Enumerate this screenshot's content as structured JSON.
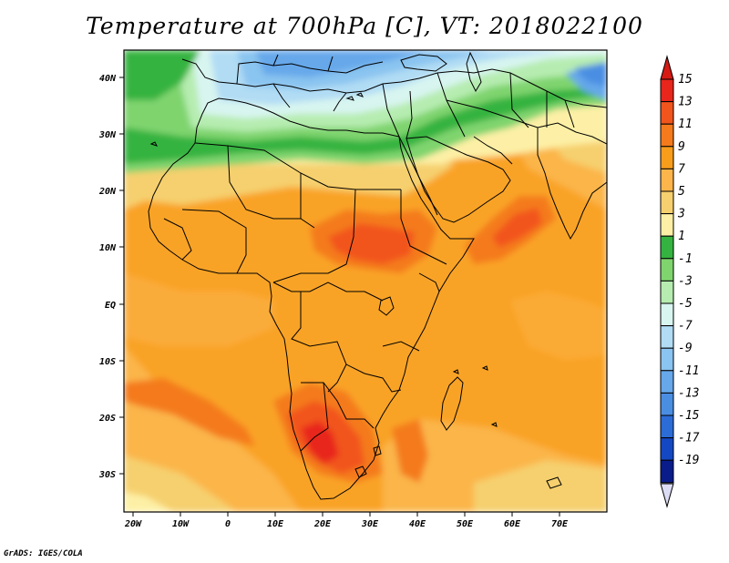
{
  "title": "Temperature at 700hPa [C], VT: 2018022100",
  "credit": "GrADS: IGES/COLA",
  "map": {
    "lon_labels": [
      "20W",
      "10W",
      "0",
      "10E",
      "20E",
      "30E",
      "40E",
      "50E",
      "60E",
      "70E"
    ],
    "lat_labels": [
      "40N",
      "30N",
      "20N",
      "10N",
      "EQ",
      "10S",
      "20S",
      "30S"
    ]
  },
  "colorbar": {
    "labels": [
      "15",
      "13",
      "11",
      "9",
      "7",
      "5",
      "3",
      "1",
      "-1",
      "-3",
      "-5",
      "-7",
      "-9",
      "-11",
      "-13",
      "-15",
      "-17",
      "-19"
    ],
    "colors": [
      "#e8261c",
      "#f2551c",
      "#f47a1c",
      "#f89c1c",
      "#fbb54a",
      "#f6d06e",
      "#fdf0a6",
      "#34b340",
      "#7fd46e",
      "#b6ecb0",
      "#d8f5f0",
      "#b1dcf4",
      "#8ac4f0",
      "#66a8ea",
      "#4a8ee2",
      "#2c6cd6",
      "#1448c2",
      "#0a1c8a"
    ],
    "top_arrow_color": "#d61a14",
    "bottom_arrow_color": "#dcdcf5"
  }
}
